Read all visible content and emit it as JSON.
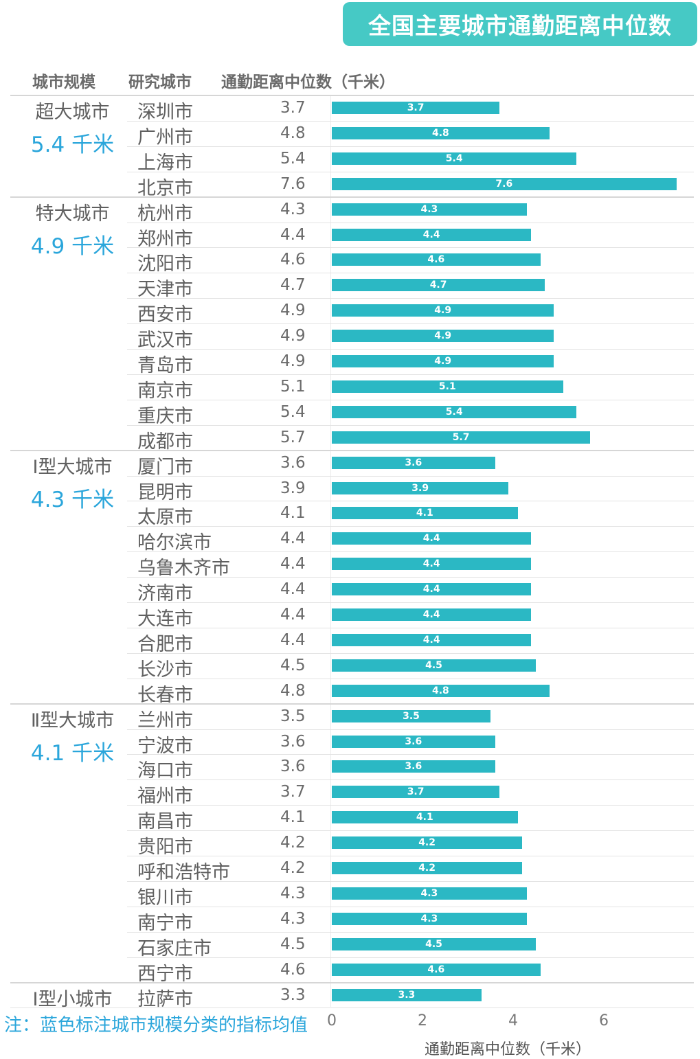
{
  "chart_data": {
    "type": "bar",
    "orientation": "horizontal",
    "title": "全国主要城市通勤距离中位数",
    "columns": [
      "城市规模",
      "研究城市",
      "通勤距离中位数（千米）"
    ],
    "xlabel": "通勤距离中位数（千米）",
    "xlim": [
      0,
      7.6
    ],
    "xticks": [
      "0",
      "2",
      "4",
      "6"
    ],
    "note": "注：蓝色标注城市规模分类的指标均值",
    "groups": [
      {
        "name": "超大城市",
        "avg": "5.4 千米",
        "cities": [
          {
            "name": "深圳市",
            "value": 3.7,
            "label": "3.7"
          },
          {
            "name": "广州市",
            "value": 4.8,
            "label": "4.8"
          },
          {
            "name": "上海市",
            "value": 5.4,
            "label": "5.4"
          },
          {
            "name": "北京市",
            "value": 7.6,
            "label": "7.6"
          }
        ]
      },
      {
        "name": "特大城市",
        "avg": "4.9 千米",
        "cities": [
          {
            "name": "杭州市",
            "value": 4.3,
            "label": "4.3"
          },
          {
            "name": "郑州市",
            "value": 4.4,
            "label": "4.4"
          },
          {
            "name": "沈阳市",
            "value": 4.6,
            "label": "4.6"
          },
          {
            "name": "天津市",
            "value": 4.7,
            "label": "4.7"
          },
          {
            "name": "西安市",
            "value": 4.9,
            "label": "4.9"
          },
          {
            "name": "武汉市",
            "value": 4.9,
            "label": "4.9"
          },
          {
            "name": "青岛市",
            "value": 4.9,
            "label": "4.9"
          },
          {
            "name": "南京市",
            "value": 5.1,
            "label": "5.1"
          },
          {
            "name": "重庆市",
            "value": 5.4,
            "label": "5.4"
          },
          {
            "name": "成都市",
            "value": 5.7,
            "label": "5.7"
          }
        ]
      },
      {
        "name": "Ⅰ型大城市",
        "avg": "4.3 千米",
        "cities": [
          {
            "name": "厦门市",
            "value": 3.6,
            "label": "3.6"
          },
          {
            "name": "昆明市",
            "value": 3.9,
            "label": "3.9"
          },
          {
            "name": "太原市",
            "value": 4.1,
            "label": "4.1"
          },
          {
            "name": "哈尔滨市",
            "value": 4.4,
            "label": "4.4"
          },
          {
            "name": "乌鲁木齐市",
            "value": 4.4,
            "label": "4.4"
          },
          {
            "name": "济南市",
            "value": 4.4,
            "label": "4.4"
          },
          {
            "name": "大连市",
            "value": 4.4,
            "label": "4.4"
          },
          {
            "name": "合肥市",
            "value": 4.4,
            "label": "4.4"
          },
          {
            "name": "长沙市",
            "value": 4.5,
            "label": "4.5"
          },
          {
            "name": "长春市",
            "value": 4.8,
            "label": "4.8"
          }
        ]
      },
      {
        "name": "Ⅱ型大城市",
        "avg": "4.1 千米",
        "cities": [
          {
            "name": "兰州市",
            "value": 3.5,
            "label": "3.5"
          },
          {
            "name": "宁波市",
            "value": 3.6,
            "label": "3.6"
          },
          {
            "name": "海口市",
            "value": 3.6,
            "label": "3.6"
          },
          {
            "name": "福州市",
            "value": 3.7,
            "label": "3.7"
          },
          {
            "name": "南昌市",
            "value": 4.1,
            "label": "4.1"
          },
          {
            "name": "贵阳市",
            "value": 4.2,
            "label": "4.2"
          },
          {
            "name": "呼和浩特市",
            "value": 4.2,
            "label": "4.2"
          },
          {
            "name": "银川市",
            "value": 4.3,
            "label": "4.3"
          },
          {
            "name": "南宁市",
            "value": 4.3,
            "label": "4.3"
          },
          {
            "name": "石家庄市",
            "value": 4.5,
            "label": "4.5"
          },
          {
            "name": "西宁市",
            "value": 4.6,
            "label": "4.6"
          }
        ]
      },
      {
        "name": "Ⅰ型小城市",
        "avg": "",
        "cities": [
          {
            "name": "拉萨市",
            "value": 3.3,
            "label": "3.3"
          }
        ]
      }
    ]
  },
  "colors": {
    "banner": "#46c9c5",
    "bar": "#2bb8c4",
    "accent": "#2ba6db"
  }
}
